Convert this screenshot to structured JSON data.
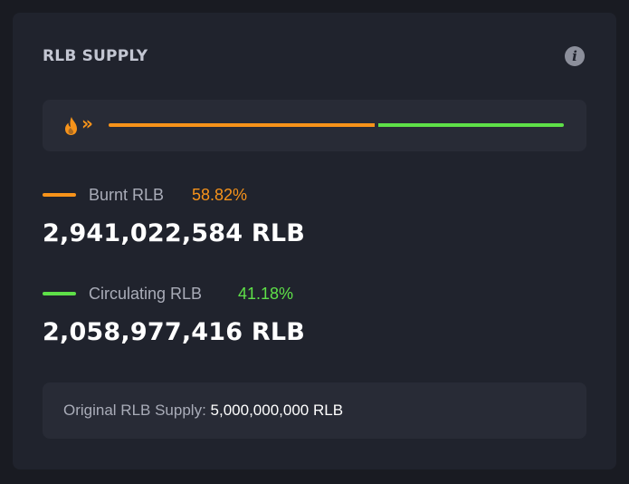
{
  "widget": {
    "title": "RLB SUPPLY",
    "info_icon": "info-icon"
  },
  "supply_bar": {
    "icons": [
      "flame-icon",
      "chevrons-right-icon"
    ],
    "burnt_fraction": 0.5882,
    "circulating_fraction": 0.4118,
    "colors": {
      "burnt": "#f7931a",
      "circulating": "#5ee048"
    }
  },
  "burnt": {
    "label": "Burnt RLB",
    "percent": "58.82%",
    "amount": "2,941,022,584 RLB",
    "color": "#f7931a"
  },
  "circulating": {
    "label": "Circulating RLB",
    "percent": "41.18%",
    "amount": "2,058,977,416 RLB",
    "color": "#5ee048"
  },
  "original_supply": {
    "label": "Original RLB Supply:",
    "value": "5,000,000,000 RLB"
  }
}
